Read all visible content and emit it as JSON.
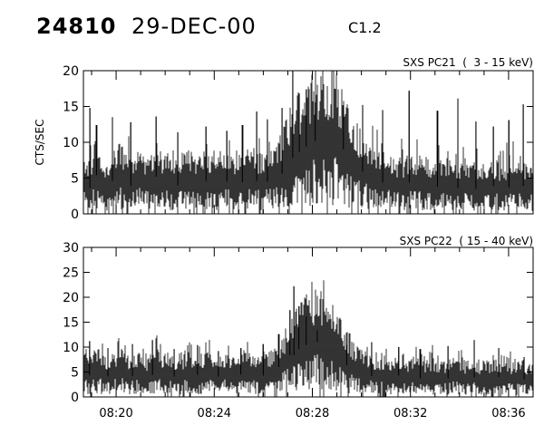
{
  "header": {
    "event_id": "24810",
    "date": "29-DEC-00",
    "goes_class": "C1.2"
  },
  "chart_data": [
    {
      "type": "line",
      "title": "SXS PC21  (  3 - 15 keV)",
      "ylabel": "CTS/SEC",
      "xlabel": "",
      "ylim": [
        0,
        20
      ],
      "yticks": [
        "0",
        "5",
        "10",
        "15",
        "20"
      ],
      "xlim": [
        "08:18:40",
        "08:37:00"
      ],
      "time_start": "08:18:40",
      "time_end": "08:37:00",
      "xticks": [],
      "grid": false,
      "series": [
        {
          "values": [
            4.2,
            3.6,
            5.4,
            4.0,
            3.8,
            4.6,
            5.0,
            4.4,
            3.9,
            4.8,
            4.1,
            4.3,
            5.2,
            4.0,
            4.5,
            4.0,
            4.3,
            4.7,
            4.1,
            4.4,
            4.6,
            4.2,
            4.0,
            4.5,
            4.3,
            4.1,
            4.4,
            4.8,
            4.6,
            4.2,
            4.5,
            4.9,
            5.6,
            6.8,
            7.8,
            8.6,
            9.4,
            9.8,
            10.2,
            10.6,
            9.8,
            10.2,
            9.0,
            7.8,
            6.8,
            5.9,
            5.4,
            5.0,
            4.6,
            4.4,
            4.2,
            4.0,
            3.9,
            4.4,
            4.3,
            4.1,
            4.0,
            3.8,
            3.9,
            4.1,
            3.7,
            3.6,
            4.0,
            3.8,
            3.5,
            3.8,
            3.6,
            3.9,
            3.4,
            3.7,
            3.6,
            3.9,
            3.5,
            3.8
          ],
          "spikes": [
            {
              "time": "08:18:56",
              "value": 14.8
            },
            {
              "time": "08:19:12",
              "value": 12.4
            },
            {
              "time": "08:19:51",
              "value": 13.5
            },
            {
              "time": "08:20:36",
              "value": 12.8
            },
            {
              "time": "08:21:38",
              "value": 13.6
            },
            {
              "time": "08:22:31",
              "value": 11.4
            },
            {
              "time": "08:23:40",
              "value": 12.2
            },
            {
              "time": "08:24:31",
              "value": 11.6
            },
            {
              "time": "08:25:09",
              "value": 12.4
            },
            {
              "time": "08:25:44",
              "value": 14.3
            },
            {
              "time": "08:26:10",
              "value": 13.2
            },
            {
              "time": "08:26:46",
              "value": 14.8
            },
            {
              "time": "08:27:12",
              "value": 20.0
            },
            {
              "time": "08:27:28",
              "value": 16.8
            },
            {
              "time": "08:27:45",
              "value": 17.4
            },
            {
              "time": "08:28:07",
              "value": 15.6
            },
            {
              "time": "08:29:16",
              "value": 15.2
            },
            {
              "time": "08:30:03",
              "value": 15.2
            },
            {
              "time": "08:30:52",
              "value": 14.5
            },
            {
              "time": "08:31:57",
              "value": 17.2
            },
            {
              "time": "08:33:06",
              "value": 14.4
            },
            {
              "time": "08:33:56",
              "value": 16.1
            },
            {
              "time": "08:34:40",
              "value": 12.9
            },
            {
              "time": "08:35:23",
              "value": 12.2
            },
            {
              "time": "08:36:01",
              "value": 13.1
            },
            {
              "time": "08:36:36",
              "value": 15.3
            }
          ]
        }
      ]
    },
    {
      "type": "line",
      "title": "SXS PC22  ( 15 - 40 keV)",
      "ylabel": "",
      "xlabel": "",
      "ylim": [
        0,
        30
      ],
      "yticks": [
        "0",
        "5",
        "10",
        "15",
        "20",
        "25",
        "30"
      ],
      "xlim": [
        "08:18:40",
        "08:37:00"
      ],
      "time_start": "08:18:40",
      "time_end": "08:37:00",
      "xticks": [
        "08:20",
        "08:24",
        "08:28",
        "08:32",
        "08:36"
      ],
      "grid": false,
      "series": [
        {
          "values": [
            4.6,
            4.3,
            5.2,
            4.8,
            4.1,
            4.6,
            5.1,
            4.4,
            4.2,
            4.7,
            4.0,
            4.4,
            4.9,
            4.3,
            4.6,
            4.1,
            4.2,
            4.8,
            4.0,
            4.4,
            4.7,
            4.3,
            4.1,
            4.6,
            4.2,
            4.0,
            4.5,
            4.8,
            4.4,
            4.3,
            4.6,
            5.0,
            6.0,
            7.2,
            8.4,
            9.6,
            10.4,
            10.8,
            11.0,
            10.6,
            9.8,
            9.0,
            7.6,
            6.4,
            5.6,
            5.0,
            4.6,
            4.2,
            4.0,
            3.8,
            3.9,
            4.3,
            4.1,
            3.9,
            4.0,
            3.7,
            3.8,
            4.0,
            3.6,
            3.7,
            4.1,
            3.9,
            3.6,
            3.9,
            3.5,
            3.8,
            3.7,
            4.0,
            3.5,
            3.6,
            3.4,
            3.8,
            3.5,
            3.6
          ],
          "spikes": [
            {
              "time": "08:18:55",
              "value": 11.2
            },
            {
              "time": "08:19:40",
              "value": 9.8
            },
            {
              "time": "08:20:40",
              "value": 10.6
            },
            {
              "time": "08:21:29",
              "value": 11.4
            },
            {
              "time": "08:22:22",
              "value": 9.6
            },
            {
              "time": "08:23:19",
              "value": 10.4
            },
            {
              "time": "08:24:10",
              "value": 9.2
            },
            {
              "time": "08:25:05",
              "value": 9.8
            },
            {
              "time": "08:26:00",
              "value": 10.6
            },
            {
              "time": "08:26:38",
              "value": 12.6
            },
            {
              "time": "08:27:05",
              "value": 17.4
            },
            {
              "time": "08:27:15",
              "value": 22.2
            },
            {
              "time": "08:27:27",
              "value": 18.2
            },
            {
              "time": "08:27:45",
              "value": 16.2
            },
            {
              "time": "08:28:12",
              "value": 13.4
            },
            {
              "time": "08:29:24",
              "value": 10.4
            },
            {
              "time": "08:30:25",
              "value": 11.0
            },
            {
              "time": "08:31:31",
              "value": 10.0
            },
            {
              "time": "08:32:24",
              "value": 9.6
            },
            {
              "time": "08:33:32",
              "value": 10.2
            },
            {
              "time": "08:34:36",
              "value": 11.4
            },
            {
              "time": "08:35:36",
              "value": 9.8
            },
            {
              "time": "08:36:38",
              "value": 8.0
            }
          ]
        }
      ]
    }
  ]
}
